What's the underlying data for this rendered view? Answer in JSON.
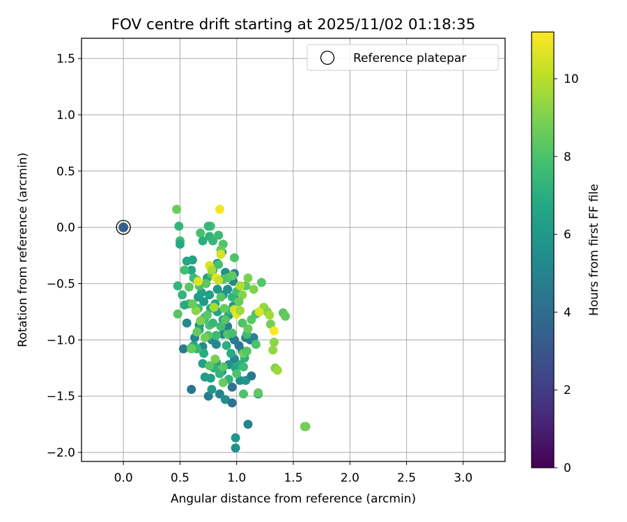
{
  "chart_data": {
    "type": "scatter",
    "title": "FOV centre drift starting at 2025/11/02 01:18:35",
    "xlabel": "Angular distance from reference (arcmin)",
    "ylabel": "Rotation from reference (arcmin)",
    "xlim": [
      -0.37,
      3.37
    ],
    "ylim": [
      -2.08,
      1.68
    ],
    "xticks": [
      0.0,
      0.5,
      1.0,
      1.5,
      2.0,
      2.5,
      3.0
    ],
    "xtick_labels": [
      "0.0",
      "0.5",
      "1.0",
      "1.5",
      "2.0",
      "2.5",
      "3.0"
    ],
    "yticks": [
      -2.0,
      -1.5,
      -1.0,
      -0.5,
      0.0,
      0.5,
      1.0,
      1.5
    ],
    "ytick_labels": [
      "−2.0",
      "−1.5",
      "−1.0",
      "−0.5",
      "0.0",
      "0.5",
      "1.0",
      "1.5"
    ],
    "grid": true,
    "legend": {
      "position": "top-right",
      "entries": [
        "Reference platepar"
      ]
    },
    "reference": {
      "x": 0.0,
      "y": 0.0,
      "hours": 3.4
    },
    "colorbar": {
      "label": "Hours from first FF file",
      "range": [
        0,
        11.2
      ],
      "ticks": [
        0,
        2,
        4,
        6,
        8,
        10
      ],
      "tick_labels": [
        "0",
        "2",
        "4",
        "6",
        "8",
        "10"
      ],
      "colormap": "viridis"
    },
    "series": [
      {
        "name": "drift",
        "points": [
          [
            0.53,
            -1.08,
            4.6
          ],
          [
            0.6,
            -1.44,
            4.4
          ],
          [
            0.75,
            -1.5,
            4.6
          ],
          [
            0.85,
            -1.48,
            5.0
          ],
          [
            0.9,
            -1.53,
            5.5
          ],
          [
            0.96,
            -1.56,
            4.2
          ],
          [
            0.96,
            -1.42,
            4.4
          ],
          [
            1.1,
            -1.75,
            5.0
          ],
          [
            1.03,
            -1.36,
            5.6
          ],
          [
            1.08,
            -1.36,
            5.8
          ],
          [
            1.13,
            -1.32,
            4.5
          ],
          [
            1.19,
            -1.48,
            5.8
          ],
          [
            0.99,
            -1.87,
            5.8
          ],
          [
            0.99,
            -1.96,
            5.6
          ],
          [
            0.56,
            -0.85,
            5.3
          ],
          [
            0.67,
            -0.87,
            5.5
          ],
          [
            0.63,
            -0.98,
            5.1
          ],
          [
            0.7,
            -1.06,
            5.3
          ],
          [
            0.78,
            -1.0,
            5.5
          ],
          [
            0.82,
            -1.04,
            5.3
          ],
          [
            0.88,
            -0.95,
            5.0
          ],
          [
            0.92,
            -0.88,
            4.8
          ],
          [
            0.95,
            -0.96,
            4.9
          ],
          [
            0.98,
            -1.0,
            4.6
          ],
          [
            1.02,
            -1.05,
            4.5
          ],
          [
            1.08,
            -0.98,
            4.8
          ],
          [
            1.12,
            -1.0,
            4.6
          ],
          [
            1.15,
            -0.98,
            5.0
          ],
          [
            1.05,
            -1.1,
            4.7
          ],
          [
            0.98,
            -1.17,
            5.2
          ],
          [
            0.93,
            -1.22,
            5.6
          ],
          [
            0.87,
            -1.28,
            5.8
          ],
          [
            0.82,
            -1.2,
            6.0
          ],
          [
            0.77,
            -1.34,
            6.3
          ],
          [
            0.7,
            -1.21,
            6.4
          ],
          [
            0.72,
            -1.33,
            6.2
          ],
          [
            0.78,
            -1.44,
            6.1
          ],
          [
            0.62,
            -1.05,
            6.4
          ],
          [
            0.67,
            -0.91,
            6.7
          ],
          [
            0.72,
            -0.8,
            6.6
          ],
          [
            0.77,
            -0.72,
            6.8
          ],
          [
            0.83,
            -0.75,
            6.5
          ],
          [
            0.88,
            -0.82,
            6.3
          ],
          [
            0.93,
            -0.78,
            6.0
          ],
          [
            0.97,
            -0.7,
            5.9
          ],
          [
            1.02,
            -0.62,
            5.7
          ],
          [
            0.97,
            -0.48,
            5.3
          ],
          [
            0.98,
            -0.41,
            5.0
          ],
          [
            0.92,
            -0.55,
            5.6
          ],
          [
            0.88,
            -0.6,
            5.8
          ],
          [
            0.83,
            -0.55,
            6.0
          ],
          [
            0.9,
            -0.4,
            5.7
          ],
          [
            0.87,
            -0.22,
            5.5
          ],
          [
            0.83,
            -0.32,
            5.9
          ],
          [
            0.79,
            -0.38,
            6.2
          ],
          [
            0.74,
            -0.45,
            6.4
          ],
          [
            0.69,
            -0.58,
            6.5
          ],
          [
            0.65,
            -0.47,
            6.6
          ],
          [
            0.61,
            -0.29,
            6.5
          ],
          [
            0.6,
            -0.38,
            6.7
          ],
          [
            0.66,
            -0.62,
            6.3
          ],
          [
            0.71,
            -0.66,
            6.1
          ],
          [
            0.76,
            -0.6,
            6.3
          ],
          [
            0.81,
            -0.68,
            6.6
          ],
          [
            0.86,
            -0.88,
            6.8
          ],
          [
            0.91,
            -1.05,
            7.0
          ],
          [
            0.95,
            -1.12,
            6.9
          ],
          [
            0.99,
            -1.25,
            6.7
          ],
          [
            1.03,
            -1.22,
            7.0
          ],
          [
            1.07,
            -1.16,
            7.1
          ],
          [
            0.93,
            -1.35,
            7.2
          ],
          [
            0.85,
            -1.3,
            7.3
          ],
          [
            0.8,
            -1.25,
            7.2
          ],
          [
            0.71,
            -1.12,
            7.0
          ],
          [
            0.65,
            -1.08,
            7.4
          ],
          [
            0.6,
            -1.07,
            7.8
          ],
          [
            0.58,
            -0.68,
            7.5
          ],
          [
            0.54,
            -0.69,
            6.9
          ],
          [
            0.52,
            -0.6,
            7.3
          ],
          [
            0.54,
            -0.38,
            7.8
          ],
          [
            0.56,
            -0.3,
            6.6
          ],
          [
            0.48,
            -0.52,
            7.3
          ],
          [
            0.48,
            -0.77,
            8.2
          ],
          [
            0.47,
            0.16,
            8.6
          ],
          [
            0.49,
            0.01,
            7.3
          ],
          [
            0.5,
            -0.12,
            7.6
          ],
          [
            0.5,
            -0.15,
            6.8
          ],
          [
            0.68,
            -0.05,
            7.9
          ],
          [
            0.7,
            -0.12,
            7.0
          ],
          [
            0.77,
            0.01,
            7.9
          ],
          [
            0.75,
            0.01,
            7.4
          ],
          [
            0.76,
            -0.08,
            7.2
          ],
          [
            0.79,
            -0.12,
            7.4
          ],
          [
            0.84,
            -0.07,
            7.6
          ],
          [
            0.88,
            -0.15,
            8.1
          ],
          [
            0.86,
            -0.2,
            8.6
          ],
          [
            0.84,
            -0.33,
            7.9
          ],
          [
            0.78,
            -0.42,
            8.2
          ],
          [
            0.73,
            -0.5,
            8.4
          ],
          [
            0.67,
            -0.52,
            8.0
          ],
          [
            0.62,
            -0.45,
            7.7
          ],
          [
            0.58,
            -0.53,
            8.3
          ],
          [
            0.66,
            -0.72,
            7.6
          ],
          [
            0.7,
            -0.82,
            7.9
          ],
          [
            0.74,
            -0.78,
            8.3
          ],
          [
            0.76,
            -0.87,
            8.0
          ],
          [
            0.79,
            -0.85,
            7.4
          ],
          [
            0.82,
            -0.96,
            7.6
          ],
          [
            0.86,
            -0.88,
            7.8
          ],
          [
            0.9,
            -0.82,
            8.2
          ],
          [
            0.94,
            -0.74,
            7.5
          ],
          [
            0.96,
            -0.62,
            7.3
          ],
          [
            1.0,
            -0.57,
            7.8
          ],
          [
            0.96,
            -0.43,
            8.5
          ],
          [
            0.92,
            -0.45,
            8.2
          ],
          [
            0.88,
            -0.46,
            8.0
          ],
          [
            0.86,
            -0.62,
            8.3
          ],
          [
            0.89,
            -0.72,
            8.5
          ],
          [
            0.92,
            -0.95,
            8.1
          ],
          [
            0.96,
            -0.94,
            7.9
          ],
          [
            1.05,
            -0.85,
            8.1
          ],
          [
            1.09,
            -0.95,
            7.7
          ],
          [
            1.1,
            -0.9,
            8.6
          ],
          [
            1.13,
            -0.82,
            8.3
          ],
          [
            1.17,
            -0.77,
            8.0
          ],
          [
            1.2,
            -0.75,
            8.8
          ],
          [
            1.15,
            -0.55,
            9.0
          ],
          [
            1.08,
            -0.52,
            8.4
          ],
          [
            1.1,
            -0.45,
            9.0
          ],
          [
            1.05,
            -0.6,
            9.2
          ],
          [
            1.02,
            -0.66,
            8.6
          ],
          [
            1.22,
            -0.49,
            8.2
          ],
          [
            1.24,
            -0.71,
            9.4
          ],
          [
            1.27,
            -0.75,
            9.0
          ],
          [
            1.29,
            -0.78,
            9.6
          ],
          [
            1.3,
            -0.86,
            8.8
          ],
          [
            1.33,
            -1.02,
            9.3
          ],
          [
            1.32,
            -1.09,
            9.4
          ],
          [
            1.34,
            -1.25,
            9.0
          ],
          [
            1.36,
            -1.27,
            9.5
          ],
          [
            1.41,
            -0.76,
            8.3
          ],
          [
            1.43,
            -0.79,
            8.5
          ],
          [
            1.17,
            -1.04,
            8.0
          ],
          [
            1.06,
            -1.12,
            8.7
          ],
          [
            1.09,
            -1.1,
            8.2
          ],
          [
            1.06,
            -1.24,
            7.6
          ],
          [
            1.0,
            -1.3,
            8.0
          ],
          [
            0.88,
            -1.38,
            8.6
          ],
          [
            0.88,
            -1.24,
            8.3
          ],
          [
            0.81,
            -1.17,
            8.9
          ],
          [
            0.76,
            -1.23,
            8.3
          ],
          [
            0.75,
            -0.96,
            8.2
          ],
          [
            0.72,
            -0.98,
            8.8
          ],
          [
            0.68,
            -0.83,
            9.0
          ],
          [
            0.64,
            -0.74,
            9.2
          ],
          [
            0.61,
            -0.68,
            8.6
          ],
          [
            0.6,
            -1.08,
            8.6
          ],
          [
            0.65,
            -0.93,
            8.5
          ],
          [
            0.76,
            -0.34,
            10.6
          ],
          [
            0.78,
            -0.38,
            9.8
          ],
          [
            0.82,
            -0.45,
            10.9
          ],
          [
            0.84,
            -0.47,
            10.3
          ],
          [
            0.66,
            -0.48,
            10.7
          ],
          [
            0.8,
            -0.71,
            9.7
          ],
          [
            0.86,
            -0.24,
            10.5
          ],
          [
            0.85,
            0.16,
            11.0
          ],
          [
            0.98,
            -0.73,
            10.5
          ],
          [
            1.0,
            -0.77,
            10.8
          ],
          [
            1.03,
            -0.52,
            9.9
          ],
          [
            1.03,
            -0.74,
            9.6
          ],
          [
            1.2,
            -0.75,
            10.6
          ],
          [
            1.33,
            -0.92,
            11.2
          ],
          [
            1.06,
            -1.48,
            8.0
          ],
          [
            1.19,
            -1.47,
            8.4
          ],
          [
            0.98,
            -0.27,
            8.0
          ],
          [
            1.61,
            -1.77,
            8.6
          ],
          [
            1.6,
            -1.77,
            8.8
          ]
        ]
      }
    ]
  }
}
